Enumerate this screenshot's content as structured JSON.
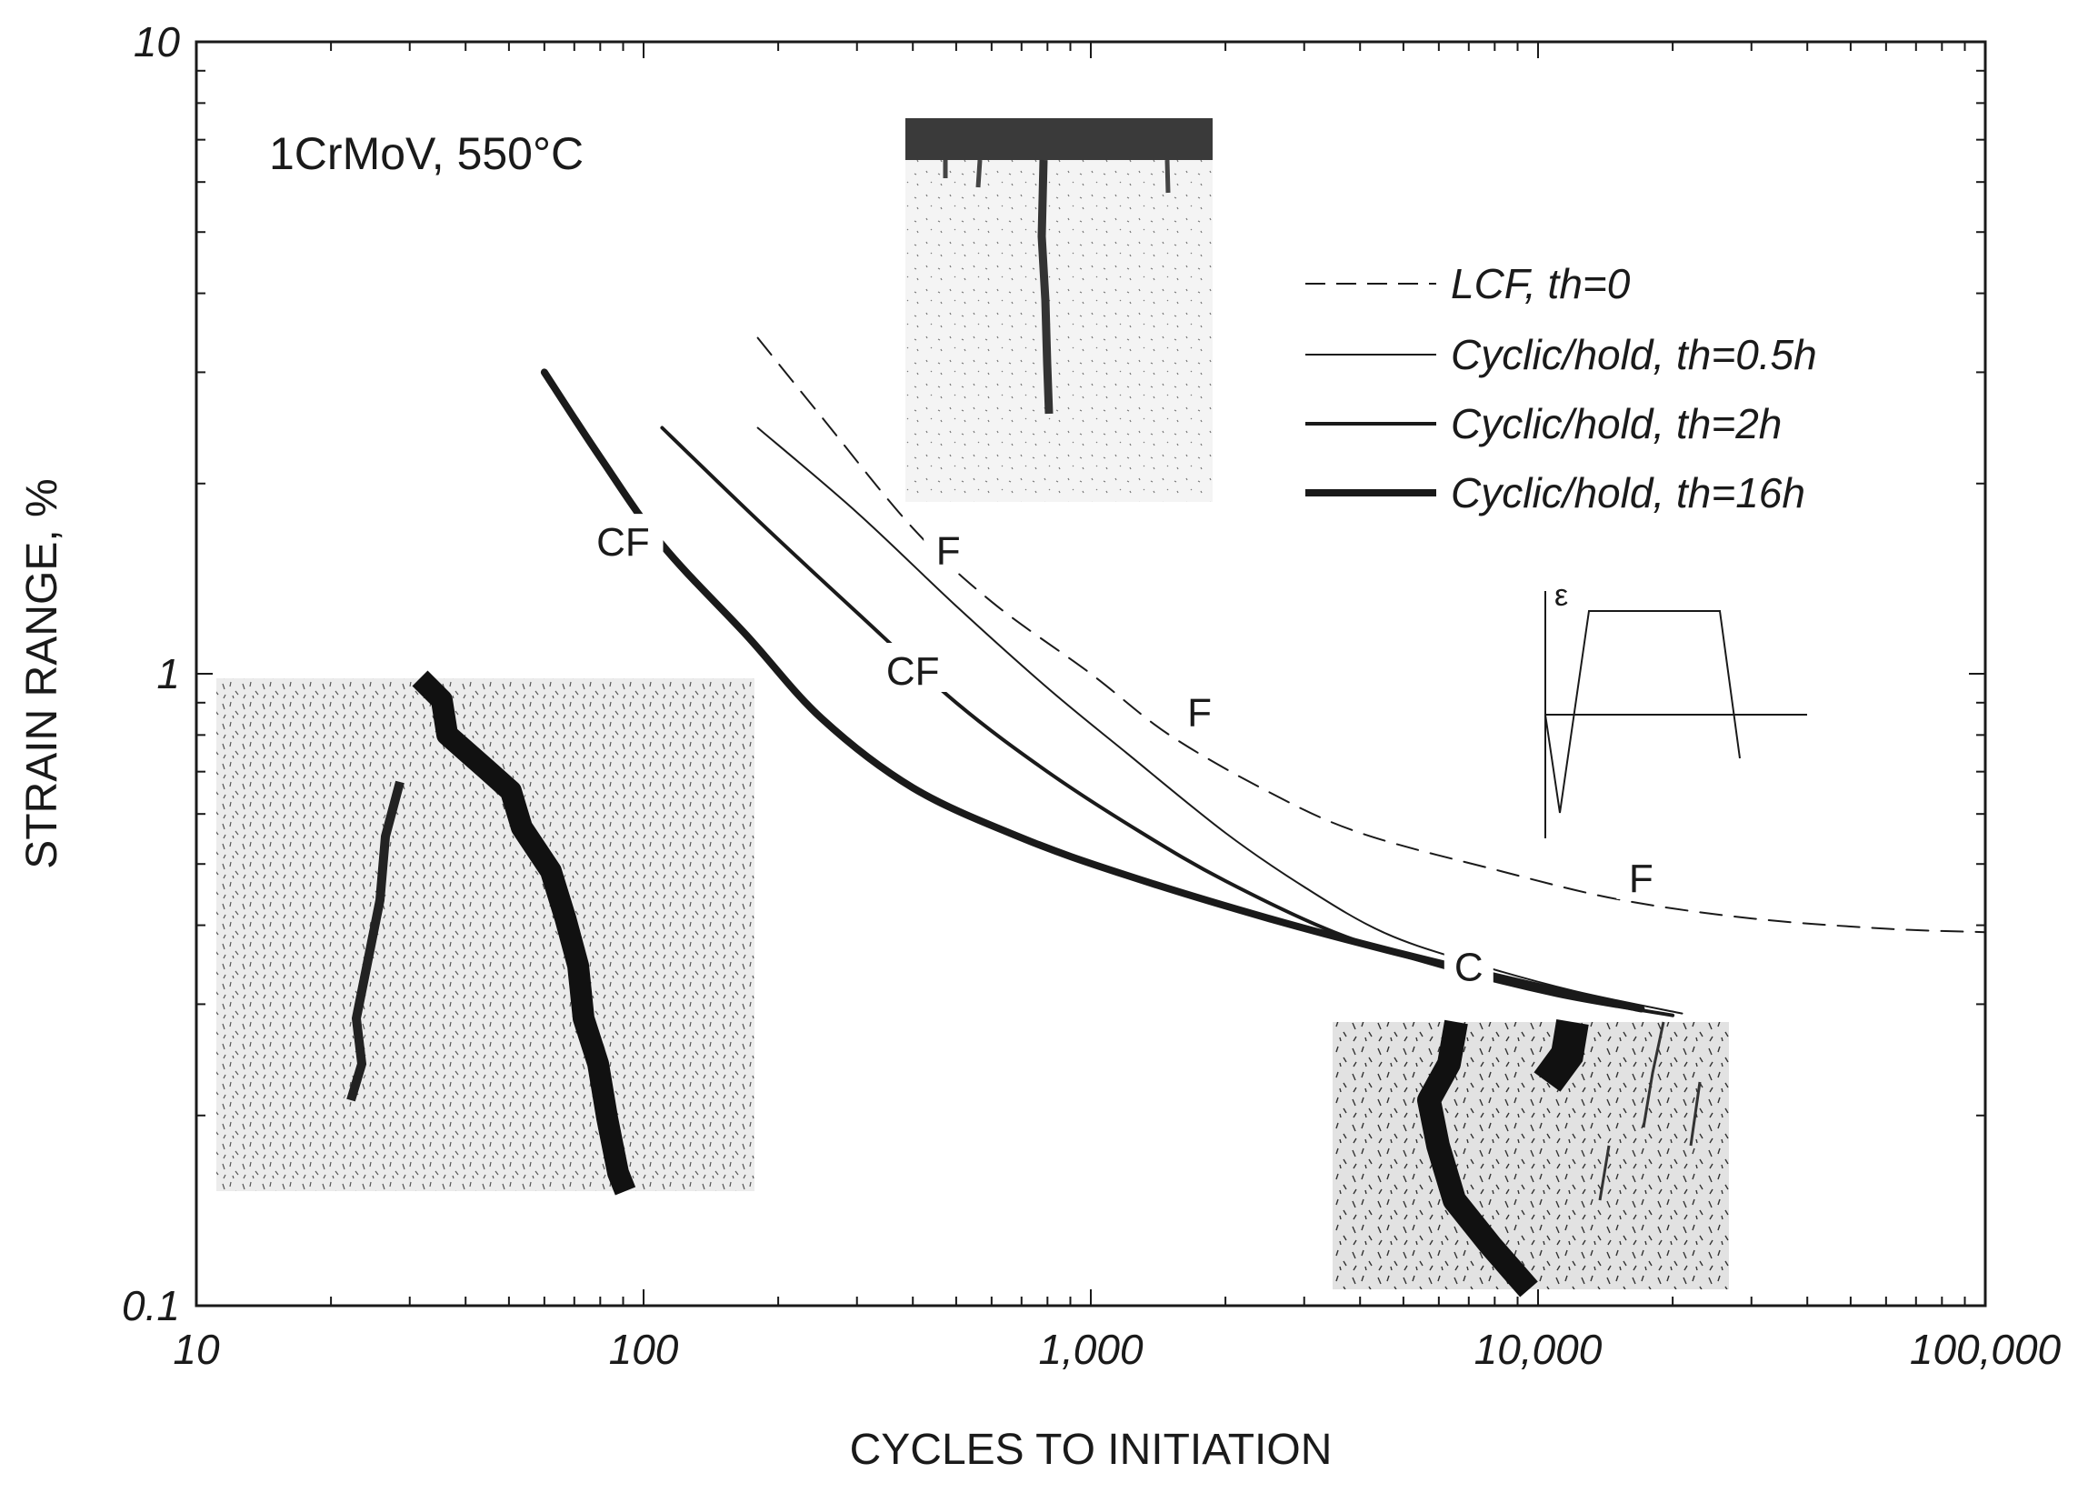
{
  "chart_data": {
    "type": "line",
    "xscale": "log",
    "yscale": "log",
    "xlim": [
      10,
      100000
    ],
    "ylim": [
      0.1,
      10
    ],
    "xlabel": "CYCLES TO INITIATION",
    "ylabel": "STRAIN RANGE, %",
    "x_ticks": [
      {
        "value": 10,
        "label": "10"
      },
      {
        "value": 100,
        "label": "100"
      },
      {
        "value": 1000,
        "label": "1,000"
      },
      {
        "value": 10000,
        "label": "10,000"
      },
      {
        "value": 100000,
        "label": "100,000"
      }
    ],
    "y_ticks": [
      {
        "value": 0.1,
        "label": "0.1"
      },
      {
        "value": 1,
        "label": "1"
      },
      {
        "value": 10,
        "label": "10"
      }
    ],
    "annotation_title": "1CrMoV, 550°C",
    "legend_position": "top-right",
    "series": [
      {
        "name": "LCF, th=0",
        "style": "dashed",
        "stroke": 2,
        "points": [
          [
            180,
            3.4
          ],
          [
            250,
            2.55
          ],
          [
            400,
            1.7
          ],
          [
            600,
            1.3
          ],
          [
            1000,
            1.0
          ],
          [
            1500,
            0.8
          ],
          [
            2500,
            0.65
          ],
          [
            4000,
            0.56
          ],
          [
            8000,
            0.49
          ],
          [
            15000,
            0.44
          ],
          [
            30000,
            0.41
          ],
          [
            60000,
            0.395
          ],
          [
            100000,
            0.39
          ]
        ]
      },
      {
        "name": "Cyclic/hold, th=0.5h",
        "style": "solid",
        "stroke": 2,
        "points": [
          [
            180,
            2.45
          ],
          [
            300,
            1.8
          ],
          [
            500,
            1.28
          ],
          [
            800,
            0.95
          ],
          [
            1200,
            0.75
          ],
          [
            2000,
            0.56
          ],
          [
            3000,
            0.46
          ],
          [
            4500,
            0.39
          ],
          [
            7000,
            0.35
          ],
          [
            12000,
            0.315
          ],
          [
            21000,
            0.29
          ]
        ]
      },
      {
        "name": "Cyclic/hold, th=2h",
        "style": "solid",
        "stroke": 4,
        "points": [
          [
            110,
            2.45
          ],
          [
            180,
            1.75
          ],
          [
            300,
            1.25
          ],
          [
            500,
            0.9
          ],
          [
            800,
            0.7
          ],
          [
            1300,
            0.56
          ],
          [
            2000,
            0.47
          ],
          [
            3500,
            0.39
          ],
          [
            6000,
            0.345
          ],
          [
            11000,
            0.31
          ],
          [
            20000,
            0.288
          ]
        ]
      },
      {
        "name": "Cyclic/hold, th=16h",
        "style": "solid",
        "stroke": 8,
        "points": [
          [
            60,
            3.0
          ],
          [
            80,
            2.2
          ],
          [
            110,
            1.6
          ],
          [
            170,
            1.15
          ],
          [
            250,
            0.85
          ],
          [
            400,
            0.66
          ],
          [
            700,
            0.55
          ],
          [
            1200,
            0.48
          ],
          [
            2500,
            0.41
          ],
          [
            5000,
            0.36
          ],
          [
            10000,
            0.32
          ],
          [
            17000,
            0.295
          ]
        ]
      }
    ],
    "curve_labels": [
      {
        "text": "CF",
        "x": 90,
        "y": 1.6
      },
      {
        "text": "F",
        "x": 480,
        "y": 1.55
      },
      {
        "text": "CF",
        "x": 400,
        "y": 1.0
      },
      {
        "text": "F",
        "x": 1750,
        "y": 0.86
      },
      {
        "text": "F",
        "x": 17000,
        "y": 0.47
      },
      {
        "text": "C",
        "x": 7000,
        "y": 0.34
      }
    ],
    "inset_label": "ε"
  }
}
